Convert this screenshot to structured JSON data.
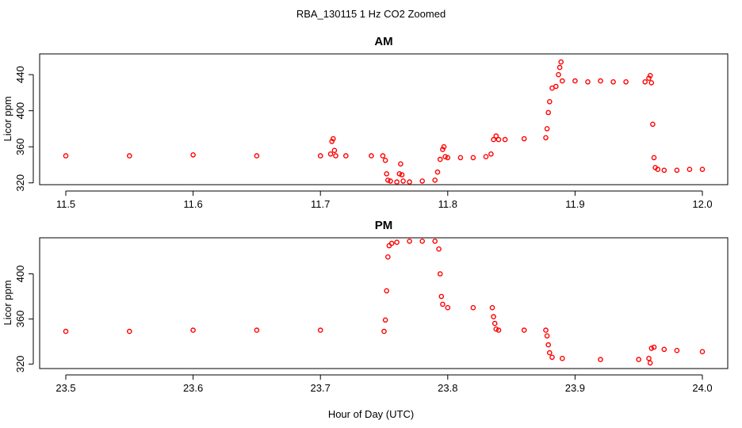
{
  "figure": {
    "title": "RBA_130115  1 Hz CO2 Zoomed",
    "xlabel": "Hour of Day (UTC)"
  },
  "colors": {
    "points": "#ff0000",
    "axes": "#000000",
    "background": "#ffffff"
  },
  "chart_data": [
    {
      "type": "scatter",
      "title": "AM",
      "xlabel": "",
      "ylabel": "Licor ppm",
      "xlim": [
        11.5,
        12.0
      ],
      "ylim": [
        318,
        463
      ],
      "xticks": [
        "11.5",
        "11.6",
        "11.7",
        "11.8",
        "11.9",
        "12.0"
      ],
      "yticks": [
        "320",
        "360",
        "400",
        "440"
      ],
      "grid": false,
      "series": [
        {
          "x": [
            11.5,
            11.55,
            11.6,
            11.65,
            11.7,
            11.708,
            11.709,
            11.71,
            11.711,
            11.712,
            11.72,
            11.74,
            11.749,
            11.751,
            11.752,
            11.753,
            11.755,
            11.76,
            11.762,
            11.763,
            11.764,
            11.765,
            11.77,
            11.78,
            11.79,
            11.792,
            11.794,
            11.796,
            11.797,
            11.798,
            11.8,
            11.81,
            11.82,
            11.83,
            11.834,
            11.836,
            11.838,
            11.84,
            11.845,
            11.86,
            11.877,
            11.878,
            11.879,
            11.88,
            11.882,
            11.885,
            11.887,
            11.888,
            11.889,
            11.89,
            11.9,
            11.91,
            11.92,
            11.93,
            11.94,
            11.955,
            11.958,
            11.959,
            11.96,
            11.961,
            11.962,
            11.963,
            11.965,
            11.97,
            11.98,
            11.99,
            12.0
          ],
          "y": [
            350,
            350,
            351,
            350,
            350,
            352,
            366,
            369,
            356,
            350,
            350,
            350,
            350,
            345,
            330,
            323,
            322,
            321,
            330,
            341,
            329,
            322,
            321,
            322,
            323,
            332,
            346,
            357,
            360,
            349,
            348,
            348,
            348,
            349,
            352,
            368,
            372,
            368,
            368,
            369,
            370,
            380,
            398,
            410,
            425,
            427,
            440,
            448,
            454,
            433,
            433,
            432,
            433,
            432,
            432,
            432,
            436,
            439,
            431,
            385,
            348,
            337,
            335,
            334,
            334,
            335,
            335
          ]
        }
      ]
    },
    {
      "type": "scatter",
      "title": "PM",
      "xlabel": "",
      "ylabel": "Licor ppm",
      "xlim": [
        23.5,
        24.0
      ],
      "ylim": [
        316,
        432
      ],
      "xticks": [
        "23.5",
        "23.6",
        "23.7",
        "23.8",
        "23.9",
        "24.0"
      ],
      "yticks": [
        "320",
        "360",
        "400"
      ],
      "grid": false,
      "series": [
        {
          "x": [
            23.5,
            23.55,
            23.6,
            23.65,
            23.7,
            23.75,
            23.751,
            23.752,
            23.753,
            23.754,
            23.756,
            23.76,
            23.77,
            23.78,
            23.79,
            23.793,
            23.794,
            23.795,
            23.796,
            23.8,
            23.82,
            23.835,
            23.836,
            23.837,
            23.838,
            23.84,
            23.86,
            23.877,
            23.878,
            23.879,
            23.88,
            23.882,
            23.89,
            23.92,
            23.95,
            23.958,
            23.959,
            23.96,
            23.962,
            23.97,
            23.98,
            24.0
          ],
          "y": [
            349,
            349,
            350,
            350,
            350,
            349,
            359,
            385,
            415,
            425,
            427,
            428,
            429,
            429,
            429,
            422,
            400,
            380,
            373,
            370,
            370,
            370,
            362,
            356,
            351,
            350,
            350,
            350,
            345,
            337,
            330,
            326,
            325,
            324,
            324,
            325,
            321,
            334,
            335,
            333,
            332,
            331
          ]
        }
      ]
    }
  ]
}
